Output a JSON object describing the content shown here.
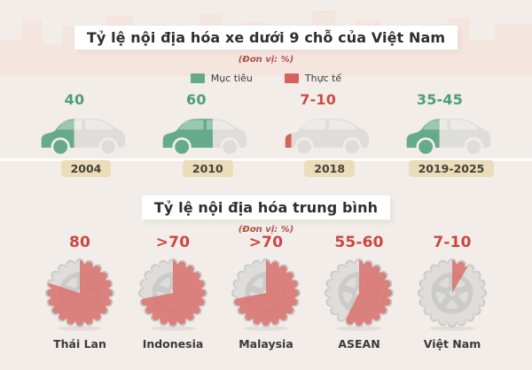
{
  "colors": {
    "page_bg": "#f2ede8",
    "skyline": "#f6e2dc",
    "green": "#66aa8c",
    "green_window": "#9bc7b0",
    "green_text": "#4f9c7c",
    "red": "#d6615d",
    "red_window": "#e49a97",
    "red_text": "#cc4b48",
    "gray_body": "#dfddda",
    "gray_window": "#edebe7",
    "tire": "#dedddb",
    "tire_outline": "#c8c8c6",
    "rim": "#cbcbc9",
    "pie_red": "#d97471",
    "badge_bg": "#ebdcba",
    "badge_text": "#45423a"
  },
  "section1": {
    "title": "Tỷ lệ nội địa hóa xe dưới 9 chỗ của Việt Nam",
    "unit": "(Đơn vị: %)",
    "legend": [
      {
        "label": "Mục tiêu",
        "color": "#66aa8c"
      },
      {
        "label": "Thực tế",
        "color": "#d6615d"
      }
    ],
    "cars": [
      {
        "value": "40",
        "percent": 40,
        "type": "target",
        "year": "2004"
      },
      {
        "value": "60",
        "percent": 60,
        "type": "target",
        "year": "2010"
      },
      {
        "value": "7-10",
        "percent": 9,
        "type": "actual",
        "year": "2018"
      },
      {
        "value": "35-45",
        "percent": 40,
        "type": "target",
        "year": "2019-2025"
      }
    ]
  },
  "section2": {
    "title": "Tỷ lệ nội địa hóa trung bình",
    "unit": "(Đơn vị: %)",
    "pies": [
      {
        "value": "80",
        "percent": 80,
        "label": "Thái Lan"
      },
      {
        "value": ">70",
        "percent": 72,
        "label": "Indonesia"
      },
      {
        "value": ">70",
        "percent": 72,
        "label": "Malaysia"
      },
      {
        "value": "55-60",
        "percent": 57.5,
        "label": "ASEAN"
      },
      {
        "value": "7-10",
        "percent": 8.5,
        "label": "Việt Nam"
      }
    ]
  },
  "chart_data": [
    {
      "type": "pictogram-bar",
      "title": "Tỷ lệ nội địa hóa xe dưới 9 chỗ của Việt Nam",
      "unit": "%",
      "legend": [
        "Mục tiêu",
        "Thực tế"
      ],
      "categories": [
        "2004",
        "2010",
        "2018",
        "2019-2025"
      ],
      "points": [
        {
          "category": "2004",
          "series": "Mục tiêu",
          "value_label": "40",
          "value_numeric": 40
        },
        {
          "category": "2010",
          "series": "Mục tiêu",
          "value_label": "60",
          "value_numeric": 60
        },
        {
          "category": "2018",
          "series": "Thực tế",
          "value_label": "7-10",
          "value_numeric": 8.5
        },
        {
          "category": "2019-2025",
          "series": "Mục tiêu",
          "value_label": "35-45",
          "value_numeric": 40
        }
      ]
    },
    {
      "type": "pie",
      "title": "Tỷ lệ nội địa hóa trung bình",
      "unit": "%",
      "categories": [
        "Thái Lan",
        "Indonesia",
        "Malaysia",
        "ASEAN",
        "Việt Nam"
      ],
      "value_labels": [
        "80",
        ">70",
        ">70",
        "55-60",
        "7-10"
      ],
      "values": [
        80,
        72,
        72,
        57.5,
        8.5
      ],
      "note": "each tire shows filled share = localization rate, remainder gray"
    }
  ]
}
